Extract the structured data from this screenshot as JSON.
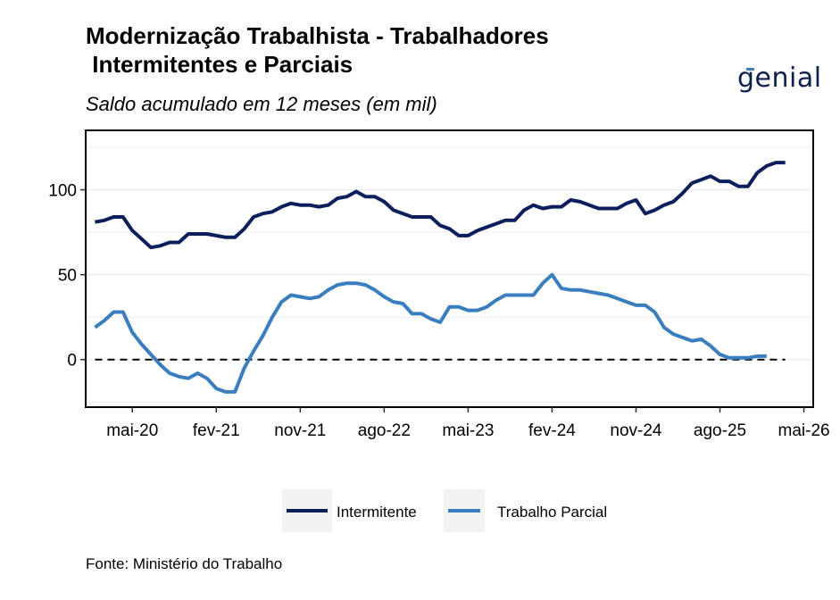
{
  "header": {
    "title": "Modernização Trabalhista - Trabalhadores\n Intermitentes e Parciais",
    "subtitle": "Saldo acumulado em 12 meses (em mil)",
    "logo_text": "genial"
  },
  "footer": {
    "source": "Fonte: Ministério do Trabalho"
  },
  "colors": {
    "intermitente": "#0c1f5c",
    "parcial": "#3a7ebf",
    "grid": "#ebebeb",
    "zero_line": "#000000"
  },
  "chart_data": {
    "type": "line",
    "x_start": "2020-01",
    "x_tick_labels": [
      "mai-20",
      "fev-21",
      "nov-21",
      "ago-22",
      "mai-23",
      "fev-24",
      "nov-24",
      "ago-25",
      "mai-26"
    ],
    "x_ticks": [
      "2020-05",
      "2021-02",
      "2021-11",
      "2022-08",
      "2023-05",
      "2024-02",
      "2024-11",
      "2025-08",
      "2026-05"
    ],
    "y_ticks": [
      0,
      50,
      100
    ],
    "ylim": [
      -28,
      135
    ],
    "xlim": [
      "2019-12",
      "2026-06"
    ],
    "legend_position": "bottom",
    "reference_line": 0,
    "series": [
      {
        "name": "Intermitente",
        "values": [
          81,
          82,
          84,
          84,
          76,
          71,
          66,
          67,
          69,
          69,
          74,
          74,
          74,
          73,
          72,
          72,
          77,
          84,
          86,
          87,
          90,
          92,
          91,
          91,
          90,
          91,
          95,
          96,
          99,
          96,
          96,
          93,
          88,
          86,
          84,
          84,
          84,
          79,
          77,
          73,
          73,
          76,
          78,
          80,
          82,
          82,
          88,
          91,
          89,
          90,
          90,
          94,
          93,
          91,
          89,
          89,
          89,
          92,
          94,
          86,
          88,
          91,
          93,
          98,
          104,
          106,
          108,
          105,
          105,
          102,
          102,
          110,
          114,
          116,
          116
        ]
      },
      {
        "name": "Trabalho Parcial",
        "values": [
          19,
          23,
          28,
          28,
          16,
          9,
          3,
          -3,
          -8,
          -10,
          -11,
          -8,
          -11,
          -17,
          -19,
          -19,
          -5,
          5,
          14,
          25,
          34,
          38,
          37,
          36,
          37,
          41,
          44,
          45,
          45,
          44,
          41,
          37,
          34,
          33,
          27,
          27,
          24,
          22,
          31,
          31,
          29,
          29,
          31,
          35,
          38,
          38,
          38,
          38,
          45,
          50,
          42,
          41,
          41,
          40,
          39,
          38,
          36,
          34,
          32,
          32,
          28,
          19,
          15,
          13,
          11,
          12,
          8,
          3,
          1,
          1,
          1,
          2,
          2
        ]
      }
    ]
  }
}
